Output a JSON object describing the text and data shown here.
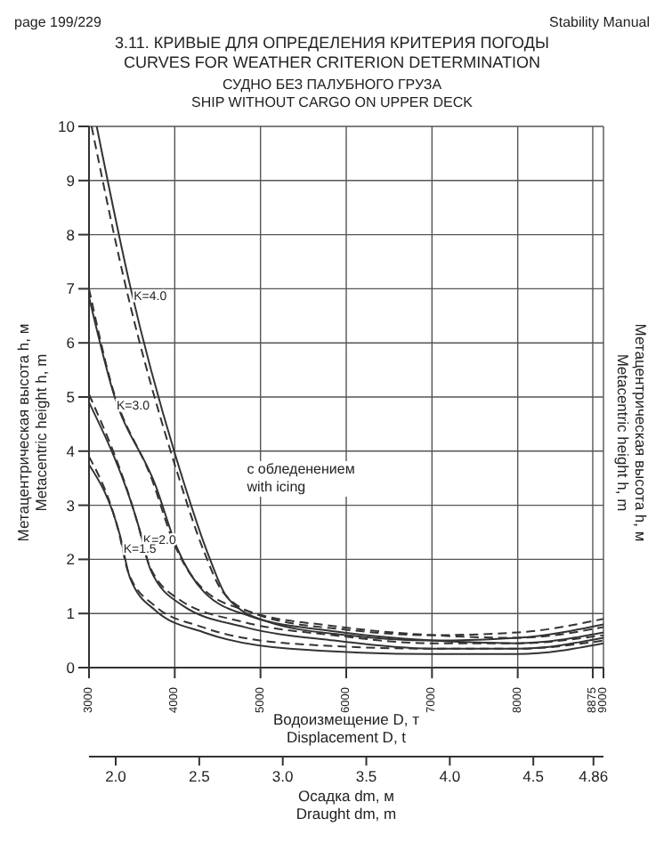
{
  "chart_data": {
    "type": "line",
    "title": "3.11. КРИВЫЕ ДЛЯ ОПРЕДЕЛЕНИЯ КРИТЕРИЯ ПОГОДЫ\nCURVES FOR WEATHER CRITERION DETERMINATION",
    "subtitle": "СУДНО БЕЗ ПАЛУБНОГО ГРУЗА\nSHIP WITHOUT CARGO ON UPPER DECK",
    "xlabel": "Водоизмещение D, т\nDisplacement D, t",
    "x2label": "Осадка dm, м\nDraught dm, m",
    "ylabel": "Метацентрическая высота h, м\nMetacentric height h, m",
    "annotations": [
      "page 199/229",
      "Stability Manual",
      "с обледенением\nwith icing"
    ],
    "xlim": [
      3000,
      9000
    ],
    "xticks": [
      3000,
      4000,
      5000,
      6000,
      7000,
      8000,
      8875,
      9000
    ],
    "x2lim": [
      1.84,
      4.92
    ],
    "x2ticks": [
      {
        "value": 2,
        "label": "2.0"
      },
      2.5,
      {
        "value": 3,
        "label": "3.0"
      },
      3.5,
      {
        "value": 4,
        "label": "4.0"
      },
      4.5,
      4.86
    ],
    "ylim": [
      0,
      10
    ],
    "yticks": [
      0,
      1,
      2,
      3,
      4,
      5,
      6,
      7,
      8,
      9,
      10
    ],
    "grid": true,
    "marker": "none",
    "legend": false,
    "series": [
      {
        "name": "K=4.0",
        "color": "#333333",
        "line_style": "solid",
        "x": [
          3090,
          3480,
          4090,
          4400,
          4610,
          5080,
          6000,
          7000,
          8000,
          9000
        ],
        "values": [
          10.0,
          7.05,
          3.5,
          2.05,
          1.3,
          0.85,
          0.6,
          0.5,
          0.55,
          0.8
        ]
      },
      {
        "color": "#333333",
        "line_style": "dashed",
        "x": [
          3030,
          3420,
          4030,
          4340,
          4560,
          5020,
          6000,
          7000,
          8000,
          9000
        ],
        "values": [
          10.0,
          7.1,
          3.6,
          2.15,
          1.4,
          0.95,
          0.7,
          0.6,
          0.65,
          0.9
        ]
      },
      {
        "name": "K=3.0",
        "color": "#333333",
        "line_style": "solid",
        "x": [
          3000,
          3280,
          3780,
          4030,
          4340,
          4880,
          5860,
          7000,
          8000,
          9000
        ],
        "values": [
          6.85,
          5.1,
          3.35,
          2.2,
          1.4,
          0.95,
          0.67,
          0.5,
          0.45,
          0.65
        ]
      },
      {
        "color": "#333333",
        "line_style": "dashed",
        "x": [
          3000,
          3250,
          3740,
          3990,
          4300,
          4840,
          5840,
          7000,
          8000,
          9000
        ],
        "values": [
          7.0,
          5.3,
          3.45,
          2.3,
          1.5,
          1.05,
          0.77,
          0.6,
          0.55,
          0.75
        ]
      },
      {
        "name": "K=2.0",
        "color": "#333333",
        "line_style": "solid",
        "x": [
          3000,
          3590,
          3720,
          4090,
          4810,
          5860,
          7000,
          8000,
          9000
        ],
        "values": [
          4.9,
          2.55,
          1.8,
          1.15,
          0.75,
          0.5,
          0.35,
          0.35,
          0.55
        ]
      },
      {
        "color": "#333333",
        "line_style": "dashed",
        "x": [
          3000,
          3570,
          3700,
          4060,
          4780,
          5840,
          7000,
          8000,
          9000
        ],
        "values": [
          5.05,
          2.65,
          1.9,
          1.25,
          0.85,
          0.6,
          0.45,
          0.45,
          0.6
        ]
      },
      {
        "name": "K=1.5",
        "color": "#333333",
        "line_style": "solid",
        "x": [
          3000,
          3360,
          3480,
          3780,
          4340,
          5340,
          7000,
          8000,
          9000
        ],
        "values": [
          3.75,
          2.45,
          1.65,
          1.05,
          0.65,
          0.35,
          0.25,
          0.25,
          0.45
        ]
      },
      {
        "color": "#333333",
        "line_style": "dashed",
        "x": [
          3000,
          3340,
          3460,
          3760,
          4320,
          5320,
          7000,
          8000,
          9000
        ],
        "values": [
          3.9,
          2.55,
          1.75,
          1.15,
          0.75,
          0.45,
          0.35,
          0.35,
          0.5
        ]
      }
    ]
  }
}
